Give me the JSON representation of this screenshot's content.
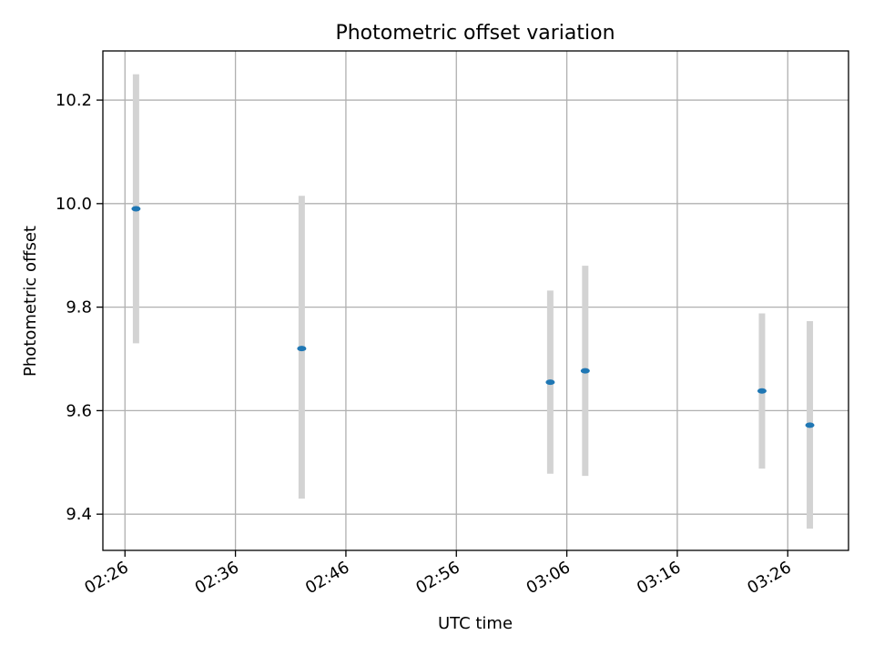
{
  "chart_data": {
    "type": "scatter",
    "title": "Photometric offset variation",
    "xlabel": "UTC time",
    "ylabel": "Photometric offset",
    "x_ticks": [
      "02:26",
      "02:36",
      "02:46",
      "02:56",
      "03:06",
      "03:16",
      "03:26"
    ],
    "y_ticks": [
      "9.4",
      "9.6",
      "9.8",
      "10.0",
      "10.2"
    ],
    "xlim": [
      "02:24:00",
      "03:31:30"
    ],
    "ylim": [
      9.33,
      10.295
    ],
    "grid": true,
    "points": [
      {
        "time": "02:27:00",
        "y": 9.99,
        "err_low": 9.73,
        "err_high": 10.25
      },
      {
        "time": "02:42:00",
        "y": 9.72,
        "err_low": 9.43,
        "err_high": 10.015
      },
      {
        "time": "03:04:30",
        "y": 9.655,
        "err_low": 9.478,
        "err_high": 9.832
      },
      {
        "time": "03:07:40",
        "y": 9.677,
        "err_low": 9.474,
        "err_high": 9.88
      },
      {
        "time": "03:23:40",
        "y": 9.638,
        "err_low": 9.488,
        "err_high": 9.788
      },
      {
        "time": "03:28:00",
        "y": 9.572,
        "err_low": 9.372,
        "err_high": 9.773
      }
    ],
    "colors": {
      "marker": "#1f77b4",
      "errorbar": "#d3d3d3",
      "grid": "#b0b0b0"
    }
  }
}
